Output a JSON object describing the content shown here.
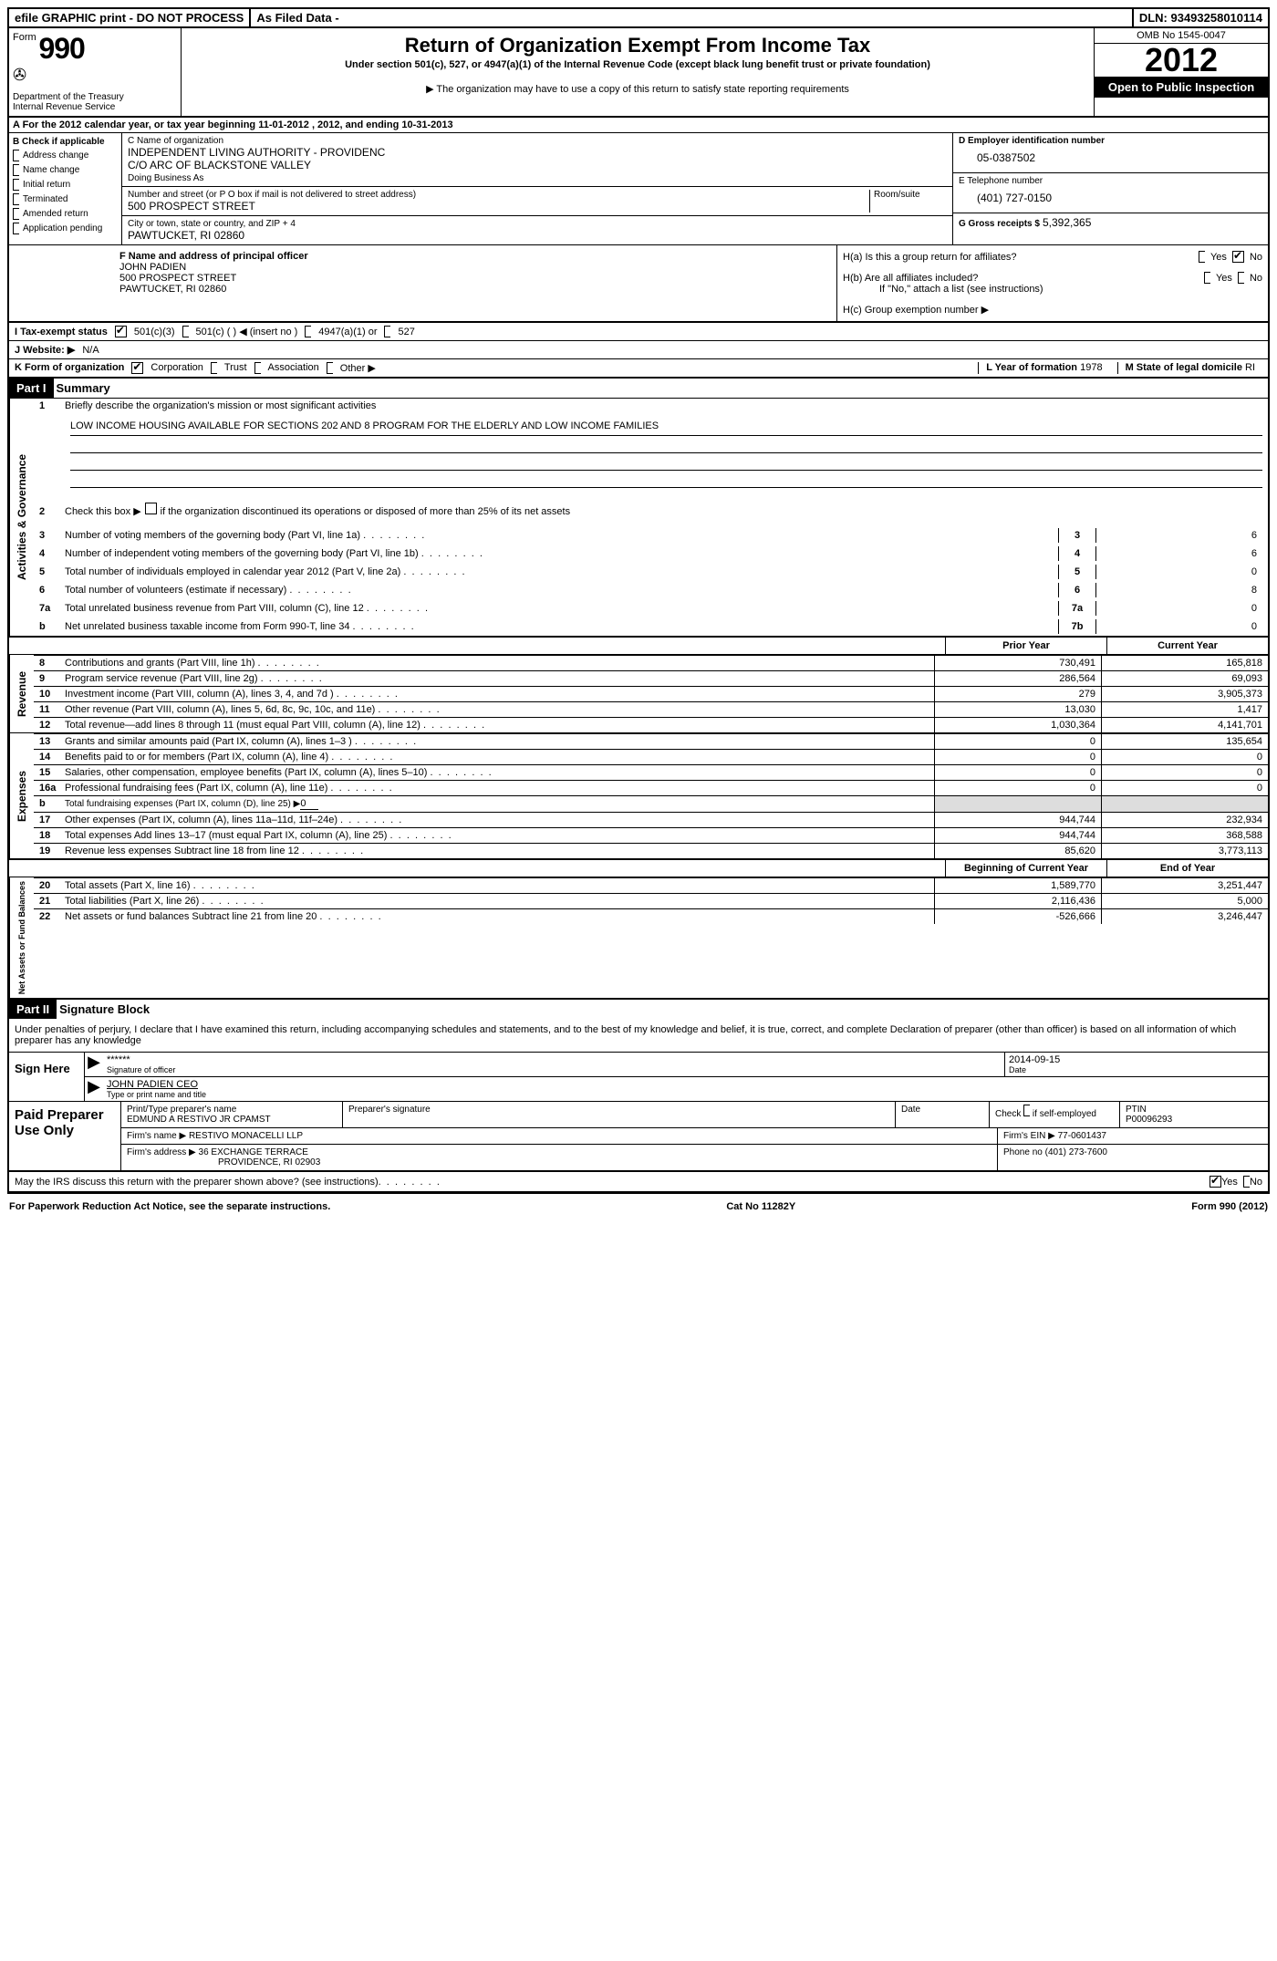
{
  "top": {
    "efile": "efile GRAPHIC print - DO NOT PROCESS",
    "asfiled": "As Filed Data -",
    "dln_label": "DLN:",
    "dln": "93493258010114"
  },
  "header": {
    "form_label": "Form",
    "form_number": "990",
    "dept1": "Department of the Treasury",
    "dept2": "Internal Revenue Service",
    "title": "Return of Organization Exempt From Income Tax",
    "subtitle": "Under section 501(c), 527, or 4947(a)(1) of the Internal Revenue Code (except black lung benefit trust or private foundation)",
    "note": "▶ The organization may have to use a copy of this return to satisfy state reporting requirements",
    "omb": "OMB No 1545-0047",
    "year": "2012",
    "open": "Open to Public Inspection"
  },
  "period": {
    "prefix": "A For the 2012 calendar year, or tax year beginning",
    "begin": "11-01-2012",
    "mid": ", 2012, and ending",
    "end": "10-31-2013"
  },
  "boxB": {
    "title": "B Check if applicable",
    "items": [
      "Address change",
      "Name change",
      "Initial return",
      "Terminated",
      "Amended return",
      "Application pending"
    ]
  },
  "boxC": {
    "name_lbl": "C Name of organization",
    "name": "INDEPENDENT LIVING AUTHORITY - PROVIDENC",
    "co": "C/O ARC OF BLACKSTONE VALLEY",
    "dba_lbl": "Doing Business As",
    "street_lbl": "Number and street (or P O  box if mail is not delivered to street address)",
    "room_lbl": "Room/suite",
    "street": "500 PROSPECT STREET",
    "city_lbl": "City or town, state or country, and ZIP + 4",
    "city": "PAWTUCKET, RI  02860"
  },
  "boxD": {
    "lbl": "D Employer identification number",
    "val": "05-0387502"
  },
  "boxE": {
    "lbl": "E Telephone number",
    "val": "(401) 727-0150"
  },
  "boxG": {
    "lbl": "G Gross receipts $",
    "val": "5,392,365"
  },
  "boxF": {
    "lbl": "F  Name and address of principal officer",
    "name": "JOHN PADIEN",
    "addr1": "500 PROSPECT STREET",
    "addr2": "PAWTUCKET, RI  02860"
  },
  "boxH": {
    "a": "H(a)  Is this a group return for affiliates?",
    "b": "H(b)  Are all affiliates included?",
    "b_note": "If \"No,\" attach a list  (see instructions)",
    "c": "H(c)   Group exemption number ▶",
    "yes": "Yes",
    "no": "No"
  },
  "rowI": {
    "lbl": "I   Tax-exempt status",
    "o1": "501(c)(3)",
    "o2": "501(c) (  ) ◀ (insert no )",
    "o3": "4947(a)(1) or",
    "o4": "527"
  },
  "rowJ": {
    "lbl": "J  Website: ▶",
    "val": "N/A"
  },
  "rowK": {
    "lbl": "K Form of organization",
    "o1": "Corporation",
    "o2": "Trust",
    "o3": "Association",
    "o4": "Other ▶",
    "L_lbl": "L Year of formation",
    "L_val": "1978",
    "M_lbl": "M State of legal domicile",
    "M_val": "RI"
  },
  "partI": {
    "hdr": "Part I",
    "title": "Summary"
  },
  "ag": {
    "side": "Activities & Governance",
    "l1": "Briefly describe the organization's mission or most significant activities",
    "mission": "LOW INCOME HOUSING AVAILABLE FOR SECTIONS 202 AND 8 PROGRAM FOR THE ELDERLY AND LOW INCOME FAMILIES",
    "l2": "Check this box ▶",
    "l2b": "if the organization discontinued its operations or disposed of more than 25% of its net assets",
    "rows": [
      {
        "n": "3",
        "t": "Number of voting members of the governing body (Part VI, line 1a)",
        "v": "6"
      },
      {
        "n": "4",
        "t": "Number of independent voting members of the governing body (Part VI, line 1b)",
        "v": "6"
      },
      {
        "n": "5",
        "t": "Total number of individuals employed in calendar year 2012 (Part V, line 2a)",
        "v": "0"
      },
      {
        "n": "6",
        "t": "Total number of volunteers (estimate if necessary)",
        "v": "8"
      },
      {
        "n": "7a",
        "t": "Total unrelated business revenue from Part VIII, column (C), line 12",
        "v": "0"
      },
      {
        "n": "b",
        "t": "Net unrelated business taxable income from Form 990-T, line 34",
        "v": "0"
      }
    ],
    "mini": [
      "3",
      "4",
      "5",
      "6",
      "7a",
      "7b"
    ]
  },
  "cols": {
    "prior": "Prior Year",
    "current": "Current Year",
    "boy": "Beginning of Current Year",
    "eoy": "End of Year"
  },
  "rev": {
    "side": "Revenue",
    "rows": [
      {
        "n": "8",
        "t": "Contributions and grants (Part VIII, line 1h)",
        "p": "730,491",
        "c": "165,818"
      },
      {
        "n": "9",
        "t": "Program service revenue (Part VIII, line 2g)",
        "p": "286,564",
        "c": "69,093"
      },
      {
        "n": "10",
        "t": "Investment income (Part VIII, column (A), lines 3, 4, and 7d )",
        "p": "279",
        "c": "3,905,373"
      },
      {
        "n": "11",
        "t": "Other revenue (Part VIII, column (A), lines 5, 6d, 8c, 9c, 10c, and 11e)",
        "p": "13,030",
        "c": "1,417"
      },
      {
        "n": "12",
        "t": "Total revenue—add lines 8 through 11 (must equal Part VIII, column (A), line 12)",
        "p": "1,030,364",
        "c": "4,141,701"
      }
    ]
  },
  "exp": {
    "side": "Expenses",
    "rows": [
      {
        "n": "13",
        "t": "Grants and similar amounts paid (Part IX, column (A), lines 1–3 )",
        "p": "0",
        "c": "135,654"
      },
      {
        "n": "14",
        "t": "Benefits paid to or for members (Part IX, column (A), line 4)",
        "p": "0",
        "c": "0"
      },
      {
        "n": "15",
        "t": "Salaries, other compensation, employee benefits (Part IX, column (A), lines 5–10)",
        "p": "0",
        "c": "0"
      },
      {
        "n": "16a",
        "t": "Professional fundraising fees (Part IX, column (A), line 11e)",
        "p": "0",
        "c": "0"
      }
    ],
    "l16b_n": "b",
    "l16b": "Total fundraising expenses (Part IX, column (D), line 25) ▶",
    "l16b_val": "0",
    "rows2": [
      {
        "n": "17",
        "t": "Other expenses (Part IX, column (A), lines 11a–11d, 11f–24e)",
        "p": "944,744",
        "c": "232,934"
      },
      {
        "n": "18",
        "t": "Total expenses  Add lines 13–17 (must equal Part IX, column (A), line 25)",
        "p": "944,744",
        "c": "368,588"
      },
      {
        "n": "19",
        "t": "Revenue less expenses  Subtract line 18 from line 12",
        "p": "85,620",
        "c": "3,773,113"
      }
    ]
  },
  "na": {
    "side": "Net Assets or Fund Balances",
    "rows": [
      {
        "n": "20",
        "t": "Total assets (Part X, line 16)",
        "p": "1,589,770",
        "c": "3,251,447"
      },
      {
        "n": "21",
        "t": "Total liabilities (Part X, line 26)",
        "p": "2,116,436",
        "c": "5,000"
      },
      {
        "n": "22",
        "t": "Net assets or fund balances  Subtract line 21 from line 20",
        "p": "-526,666",
        "c": "3,246,447"
      }
    ]
  },
  "partII": {
    "hdr": "Part II",
    "title": "Signature Block"
  },
  "sig": {
    "decl": "Under penalties of perjury, I declare that I have examined this return, including accompanying schedules and statements, and to the best of my knowledge and belief, it is true, correct, and complete  Declaration of preparer (other than officer) is based on all information of which preparer has any knowledge",
    "sign_here": "Sign Here",
    "stars": "******",
    "sig_of_officer": "Signature of officer",
    "date_lbl": "Date",
    "date": "2014-09-15",
    "name": "JOHN PADIEN CEO",
    "name_lbl": "Type or print name and title"
  },
  "prep": {
    "left": "Paid Preparer Use Only",
    "r1": {
      "c1_lbl": "Print/Type preparer's name",
      "c1": "EDMUND A RESTIVO JR CPAMST",
      "c2_lbl": "Preparer's signature",
      "c3_lbl": "Date",
      "c4_lbl": "Check",
      "c4_lbl2": "if self-employed",
      "c5_lbl": "PTIN",
      "c5": "P00096293"
    },
    "r2": {
      "lbl": "Firm's name      ▶",
      "val": "RESTIVO MONACELLI LLP",
      "ein_lbl": "Firm's EIN ▶",
      "ein": "77-0601437"
    },
    "r3": {
      "lbl": "Firm's address ▶",
      "val1": "36 EXCHANGE TERRACE",
      "val2": "PROVIDENCE, RI  02903",
      "ph_lbl": "Phone no",
      "ph": "(401) 273-7600"
    }
  },
  "discuss": {
    "text": "May the IRS discuss this return with the preparer shown above? (see instructions)",
    "yes": "Yes",
    "no": "No"
  },
  "footer": {
    "left": "For Paperwork Reduction Act Notice, see the separate instructions.",
    "mid": "Cat No 11282Y",
    "right": "Form 990 (2012)"
  }
}
